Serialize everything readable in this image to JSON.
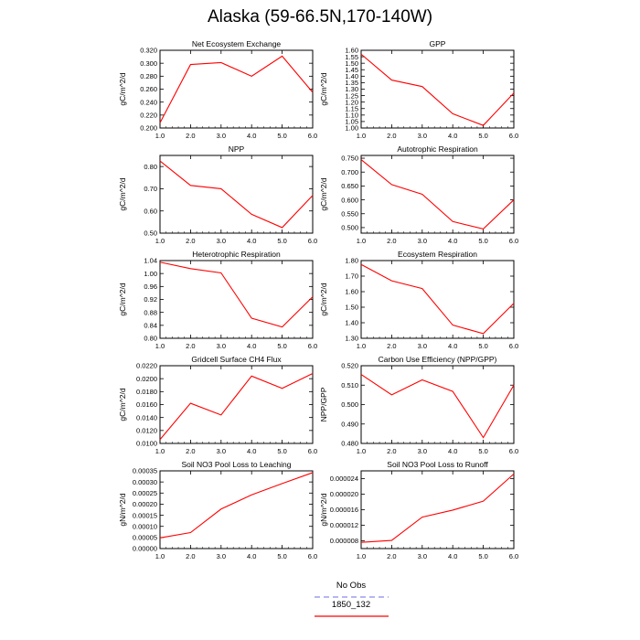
{
  "title": "Alaska (59-66.5N,170-140W)",
  "legend": [
    {
      "label": "No Obs",
      "color": "#8a8aee",
      "dash": "dashed"
    },
    {
      "label": "1850_132",
      "color": "#ff0000",
      "dash": "solid"
    }
  ],
  "chart_data": [
    {
      "type": "line",
      "title": "Net Ecosystem Exchange",
      "ylabel": "gC/m^2/d",
      "x": [
        1,
        2,
        3,
        4,
        5,
        6
      ],
      "xlim": [
        1,
        6
      ],
      "xticks": [
        "1.0",
        "2.0",
        "3.0",
        "4.0",
        "5.0",
        "6.0"
      ],
      "ylim": [
        0.2,
        0.32
      ],
      "yticks": [
        "0.200",
        "0.220",
        "0.240",
        "0.260",
        "0.280",
        "0.300",
        "0.320"
      ],
      "series": [
        {
          "values": [
            0.208,
            0.298,
            0.301,
            0.28,
            0.311,
            0.255
          ],
          "color": "#ff0000"
        }
      ]
    },
    {
      "type": "line",
      "title": "GPP",
      "ylabel": "gC/m^2/d",
      "x": [
        1,
        2,
        3,
        4,
        5,
        6
      ],
      "xlim": [
        1,
        6
      ],
      "xticks": [
        "1.0",
        "2.0",
        "3.0",
        "4.0",
        "5.0",
        "6.0"
      ],
      "ylim": [
        1.0,
        1.6
      ],
      "yticks": [
        "1.00",
        "1.05",
        "1.10",
        "1.15",
        "1.20",
        "1.25",
        "1.30",
        "1.35",
        "1.40",
        "1.45",
        "1.50",
        "1.55",
        "1.60"
      ],
      "series": [
        {
          "values": [
            1.57,
            1.37,
            1.32,
            1.11,
            1.02,
            1.27
          ],
          "color": "#ff0000"
        }
      ]
    },
    {
      "type": "line",
      "title": "NPP",
      "ylabel": "gC/m^2/d",
      "x": [
        1,
        2,
        3,
        4,
        5,
        6
      ],
      "xlim": [
        1,
        6
      ],
      "xticks": [
        "1.0",
        "2.0",
        "3.0",
        "4.0",
        "5.0",
        "6.0"
      ],
      "ylim": [
        0.5,
        0.85
      ],
      "yticks": [
        "0.50",
        "0.60",
        "0.70",
        "0.80"
      ],
      "series": [
        {
          "values": [
            0.825,
            0.715,
            0.7,
            0.585,
            0.525,
            0.67
          ],
          "color": "#ff0000"
        }
      ]
    },
    {
      "type": "line",
      "title": "Autotrophic Respiration",
      "ylabel": "gC/m^2/d",
      "x": [
        1,
        2,
        3,
        4,
        5,
        6
      ],
      "xlim": [
        1,
        6
      ],
      "xticks": [
        "1.0",
        "2.0",
        "3.0",
        "4.0",
        "5.0",
        "6.0"
      ],
      "ylim": [
        0.48,
        0.76
      ],
      "yticks": [
        "0.500",
        "0.550",
        "0.600",
        "0.650",
        "0.700",
        "0.750"
      ],
      "series": [
        {
          "values": [
            0.745,
            0.655,
            0.62,
            0.522,
            0.495,
            0.6
          ],
          "color": "#ff0000"
        }
      ]
    },
    {
      "type": "line",
      "title": "Heterotrophic Respiration",
      "ylabel": "gC/m^2/d",
      "x": [
        1,
        2,
        3,
        4,
        5,
        6
      ],
      "xlim": [
        1,
        6
      ],
      "xticks": [
        "1.0",
        "2.0",
        "3.0",
        "4.0",
        "5.0",
        "6.0"
      ],
      "ylim": [
        0.8,
        1.04
      ],
      "yticks": [
        "0.80",
        "0.84",
        "0.88",
        "0.92",
        "0.96",
        "1.00",
        "1.04"
      ],
      "series": [
        {
          "values": [
            1.035,
            1.015,
            1.002,
            0.862,
            0.835,
            0.928
          ],
          "color": "#ff0000"
        }
      ]
    },
    {
      "type": "line",
      "title": "Ecosystem Respiration",
      "ylabel": "gC/m^2/d",
      "x": [
        1,
        2,
        3,
        4,
        5,
        6
      ],
      "xlim": [
        1,
        6
      ],
      "xticks": [
        "1.0",
        "2.0",
        "3.0",
        "4.0",
        "5.0",
        "6.0"
      ],
      "ylim": [
        1.3,
        1.8
      ],
      "yticks": [
        "1.30",
        "1.40",
        "1.50",
        "1.60",
        "1.70",
        "1.80"
      ],
      "series": [
        {
          "values": [
            1.775,
            1.67,
            1.62,
            1.385,
            1.33,
            1.525
          ],
          "color": "#ff0000"
        }
      ]
    },
    {
      "type": "line",
      "title": "Gridcell Surface CH4 Flux",
      "ylabel": "gC/m^2/d",
      "x": [
        1,
        2,
        3,
        4,
        5,
        6
      ],
      "xlim": [
        1,
        6
      ],
      "xticks": [
        "1.0",
        "2.0",
        "3.0",
        "4.0",
        "5.0",
        "6.0"
      ],
      "ylim": [
        0.01,
        0.022
      ],
      "yticks": [
        "0.0100",
        "0.0120",
        "0.0140",
        "0.0160",
        "0.0180",
        "0.0200",
        "0.0220"
      ],
      "series": [
        {
          "values": [
            0.0106,
            0.0162,
            0.0144,
            0.0204,
            0.0185,
            0.0208
          ],
          "color": "#ff0000"
        }
      ]
    },
    {
      "type": "line",
      "title": "Carbon Use Efficiency (NPP/GPP)",
      "ylabel": "NPP/GPP",
      "x": [
        1,
        2,
        3,
        4,
        5,
        6
      ],
      "xlim": [
        1,
        6
      ],
      "xticks": [
        "1.0",
        "2.0",
        "3.0",
        "4.0",
        "5.0",
        "6.0"
      ],
      "ylim": [
        0.48,
        0.52
      ],
      "yticks": [
        "0.480",
        "0.490",
        "0.500",
        "0.510",
        "0.520"
      ],
      "series": [
        {
          "values": [
            0.5155,
            0.505,
            0.5127,
            0.5068,
            0.483,
            0.51
          ],
          "color": "#ff0000"
        }
      ]
    },
    {
      "type": "line",
      "title": "Soil NO3 Pool Loss to Leaching",
      "ylabel": "gN/m^2/d",
      "x": [
        1,
        2,
        3,
        4,
        5,
        6
      ],
      "xlim": [
        1,
        6
      ],
      "xticks": [
        "1.0",
        "2.0",
        "3.0",
        "4.0",
        "5.0",
        "6.0"
      ],
      "ylim": [
        0,
        0.00035
      ],
      "yticks": [
        "0.00000",
        "0.00005",
        "0.00010",
        "0.00015",
        "0.00020",
        "0.00025",
        "0.00030",
        "0.00035"
      ],
      "series": [
        {
          "values": [
            4.8e-05,
            7.2e-05,
            0.000178,
            0.000242,
            0.000293,
            0.000342
          ],
          "color": "#ff0000"
        }
      ]
    },
    {
      "type": "line",
      "title": "Soil NO3 Pool Loss to Runoff",
      "ylabel": "gN/m^2/d",
      "x": [
        1,
        2,
        3,
        4,
        5,
        6
      ],
      "xlim": [
        1,
        6
      ],
      "xticks": [
        "1.0",
        "2.0",
        "3.0",
        "4.0",
        "5.0",
        "6.0"
      ],
      "ylim": [
        6e-06,
        2.6e-05
      ],
      "yticks": [
        "0.000008",
        "0.000012",
        "0.000016",
        "0.000020",
        "0.000024"
      ],
      "series": [
        {
          "values": [
            7.6e-06,
            8.1e-06,
            1.41e-05,
            1.59e-05,
            1.82e-05,
            2.52e-05
          ],
          "color": "#ff0000"
        }
      ]
    }
  ]
}
